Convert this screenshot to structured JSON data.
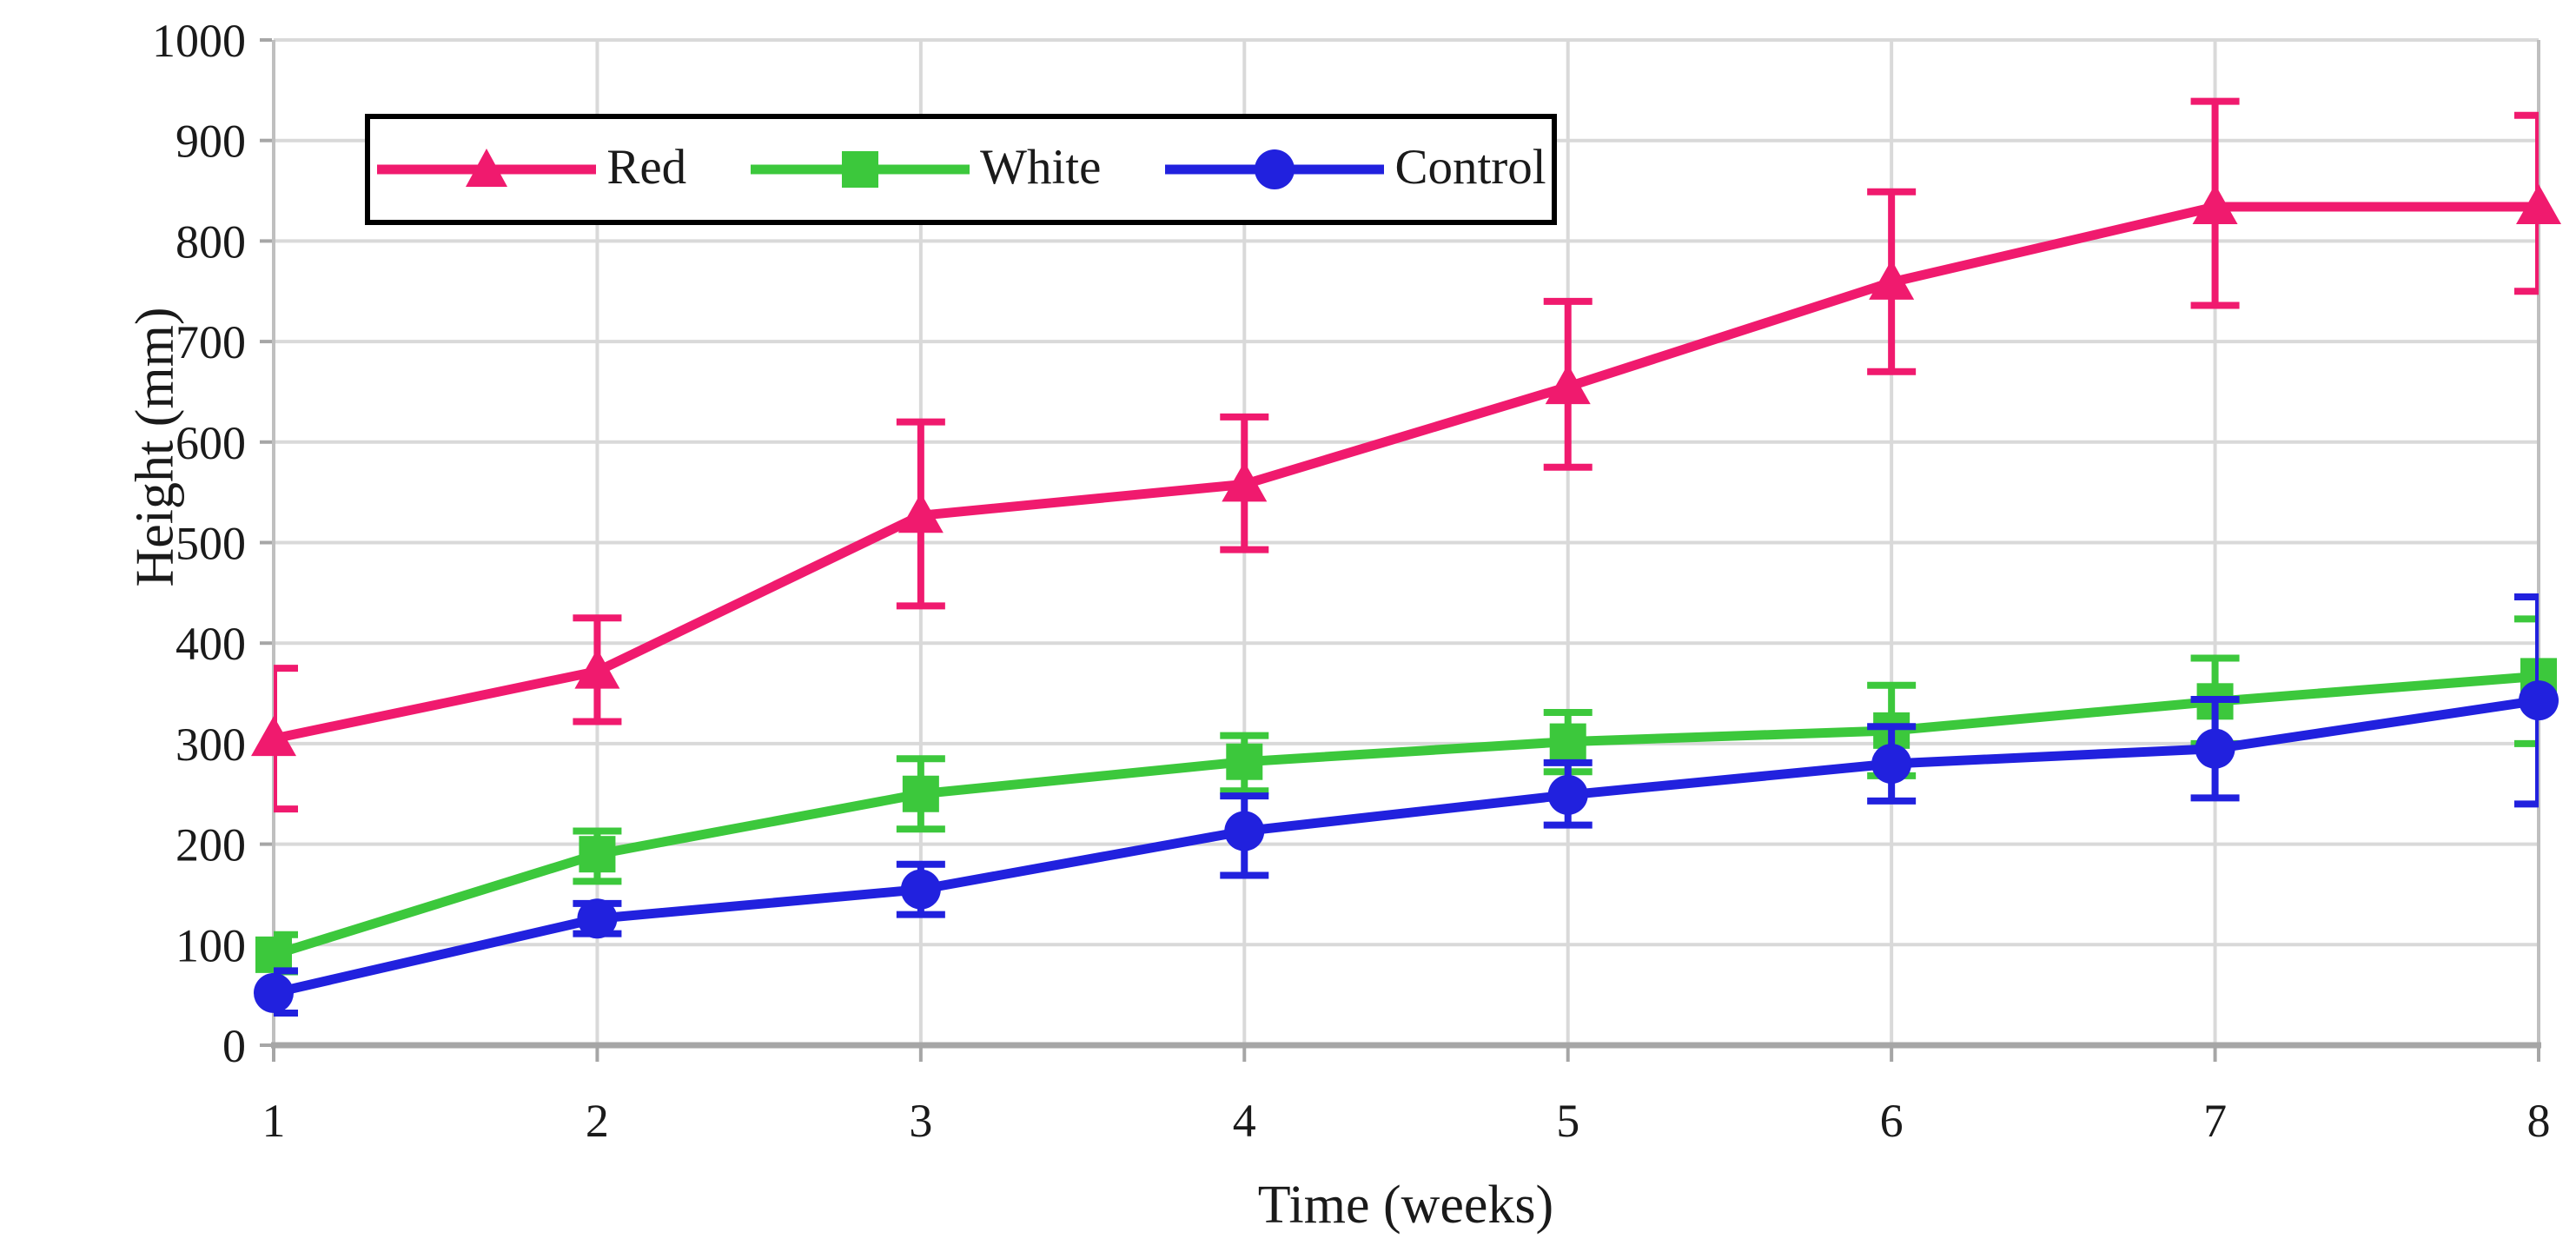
{
  "figure": {
    "background": "#ffffff",
    "text_color": "#1a1a1a",
    "gridline_color": "#d9d9d9",
    "plot_border_color": "#bfbfbf",
    "axis_line_color": "#a6a6a6"
  },
  "axes": {
    "y": {
      "title": "Height (mm)",
      "min": 0,
      "max": 1000,
      "step": 100,
      "tick_labels": [
        "0",
        "100",
        "200",
        "300",
        "400",
        "500",
        "600",
        "700",
        "800",
        "900",
        "1000"
      ]
    },
    "x": {
      "title": "Time (weeks)",
      "tick_labels": [
        "1",
        "2",
        "3",
        "4",
        "5",
        "6",
        "7",
        "8"
      ]
    }
  },
  "legend": {
    "items": [
      {
        "label": "Red",
        "marker": "triangle-icon",
        "color": "#f01a6e"
      },
      {
        "label": "White",
        "marker": "square-icon",
        "color": "#3cc83c"
      },
      {
        "label": "Control",
        "marker": "circle-icon",
        "color": "#2121de"
      }
    ]
  },
  "chart_data": {
    "type": "line",
    "title": "",
    "xlabel": "Time (weeks)",
    "ylabel": "Height (mm)",
    "x": [
      1,
      2,
      3,
      4,
      5,
      6,
      7,
      8
    ],
    "ylim": [
      0,
      1000
    ],
    "grid": true,
    "legend_position": "top-left-inside",
    "error_bars": true,
    "series": [
      {
        "name": "Red",
        "color": "#f01a6e",
        "marker": "triangle",
        "values": [
          305,
          372,
          527,
          558,
          655,
          759,
          834,
          834
        ],
        "err_low": [
          235,
          322,
          437,
          493,
          575,
          670,
          736,
          750
        ],
        "err_high": [
          375,
          425,
          620,
          625,
          740,
          849,
          939,
          925
        ]
      },
      {
        "name": "White",
        "color": "#3cc83c",
        "marker": "square",
        "values": [
          90,
          190,
          250,
          282,
          302,
          313,
          342,
          367
        ],
        "err_low": [
          73,
          163,
          215,
          253,
          272,
          268,
          300,
          300
        ],
        "err_high": [
          110,
          213,
          285,
          308,
          331,
          358,
          385,
          424
        ]
      },
      {
        "name": "Control",
        "color": "#2121de",
        "marker": "circle",
        "values": [
          52,
          126,
          155,
          213,
          249,
          280,
          295,
          343
        ],
        "err_low": [
          32,
          111,
          130,
          169,
          219,
          243,
          246,
          240
        ],
        "err_high": [
          74,
          141,
          180,
          248,
          281,
          317,
          344,
          446
        ]
      }
    ]
  }
}
